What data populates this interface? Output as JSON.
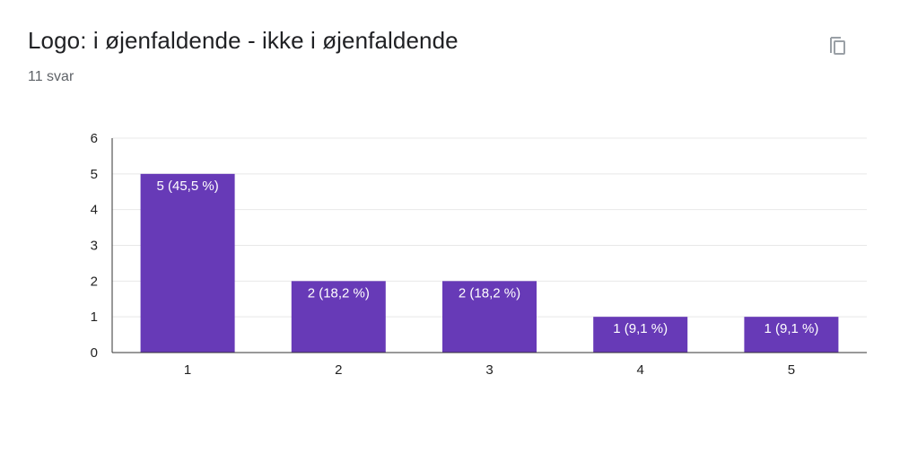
{
  "header": {
    "title": "Logo: i øjenfaldende - ikke i øjenfaldende",
    "response_count": "11 svar",
    "copy_icon": "copy-icon"
  },
  "colors": {
    "bar": "#673ab7",
    "grid": "#e8e8e8",
    "axis": "#333333"
  },
  "chart_data": {
    "type": "bar",
    "title": "",
    "xlabel": "",
    "ylabel": "",
    "categories": [
      "1",
      "2",
      "3",
      "4",
      "5"
    ],
    "values": [
      5,
      2,
      2,
      1,
      1
    ],
    "labels": [
      "5 (45,5 %)",
      "2 (18,2 %)",
      "2 (18,2 %)",
      "1 (9,1 %)",
      "1 (9,1 %)"
    ],
    "ylim": [
      0,
      6
    ],
    "yticks": [
      "0",
      "1",
      "2",
      "3",
      "4",
      "5",
      "6"
    ],
    "grid": true,
    "legend": "none"
  }
}
